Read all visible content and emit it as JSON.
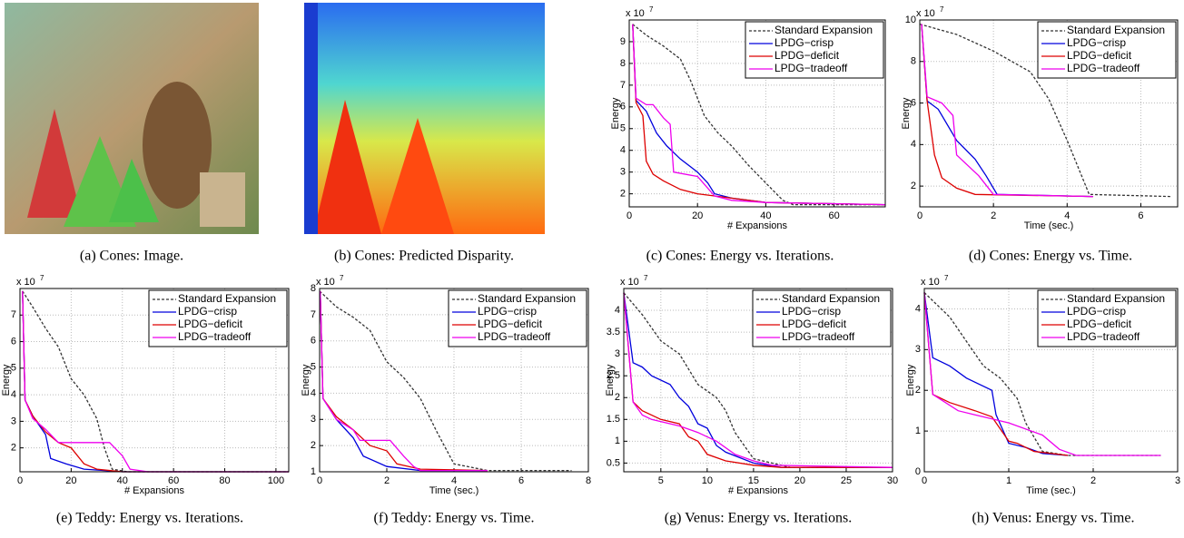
{
  "captions": [
    "(a) Cones: Image.",
    "(b) Cones: Predicted Disparity.",
    "(c) Cones: Energy vs. Iterations.",
    "(d) Cones: Energy vs. Time.",
    "(e) Teddy: Energy vs. Iterations.",
    "(f) Teddy: Energy vs. Time.",
    "(g) Venus: Energy vs. Iterations.",
    "(h) Venus: Energy vs. Time."
  ],
  "chart_data": [
    {
      "type": "line",
      "xlabel": "# Expansions",
      "ylabel": "Energy",
      "y_scale": {
        "base": "x 10",
        "exponent": "7"
      },
      "xlim": [
        0,
        75
      ],
      "xticks": [
        0,
        20,
        40,
        60
      ],
      "ylim": [
        1.4,
        10
      ],
      "yticks": [
        2,
        3,
        4,
        5,
        6,
        7,
        8,
        9
      ],
      "grid": true,
      "legend": "upper-right",
      "series": [
        {
          "name": "Standard Expansion",
          "color": "#333333",
          "dash": true,
          "x": [
            1,
            5,
            10,
            15,
            18,
            22,
            26,
            30,
            35,
            40,
            45,
            48,
            75
          ],
          "values": [
            9.8,
            9.3,
            8.8,
            8.2,
            7.2,
            5.6,
            4.8,
            4.2,
            3.3,
            2.5,
            1.7,
            1.5,
            1.5
          ]
        },
        {
          "name": "LPDG−crisp",
          "color": "#0000dd",
          "x": [
            1,
            2,
            5,
            8,
            11,
            15,
            20,
            23,
            25,
            30,
            40,
            75
          ],
          "values": [
            9.8,
            6.3,
            5.8,
            4.8,
            4.2,
            3.6,
            3.0,
            2.5,
            2.0,
            1.8,
            1.6,
            1.5
          ]
        },
        {
          "name": "LPDG−deficit",
          "color": "#dd0000",
          "x": [
            1,
            2,
            4,
            5,
            7,
            10,
            15,
            20,
            30,
            40,
            75
          ],
          "values": [
            9.8,
            6.2,
            5.6,
            3.5,
            2.9,
            2.6,
            2.2,
            2.0,
            1.8,
            1.6,
            1.5
          ]
        },
        {
          "name": "LPDG−tradeoff",
          "color": "#ee00ee",
          "x": [
            1,
            2,
            5,
            7,
            10,
            12,
            13,
            20,
            25,
            30,
            40,
            75
          ],
          "values": [
            9.8,
            6.4,
            6.1,
            6.1,
            5.5,
            5.2,
            3.0,
            2.8,
            1.9,
            1.7,
            1.6,
            1.5
          ]
        }
      ]
    },
    {
      "type": "line",
      "xlabel": "Time (sec.)",
      "ylabel": "Energy",
      "y_scale": {
        "base": "x 10",
        "exponent": "7"
      },
      "xlim": [
        0,
        7
      ],
      "xticks": [
        0,
        2,
        4,
        6
      ],
      "ylim": [
        1,
        10
      ],
      "yticks": [
        2,
        4,
        6,
        8,
        10
      ],
      "grid": true,
      "legend": "upper-right",
      "series": [
        {
          "name": "Standard Expansion",
          "color": "#333333",
          "dash": true,
          "x": [
            0,
            1,
            2,
            3,
            3.5,
            4,
            4.6,
            6.8
          ],
          "values": [
            9.8,
            9.3,
            8.5,
            7.5,
            6.2,
            4.2,
            1.6,
            1.5
          ]
        },
        {
          "name": "LPDG−crisp",
          "color": "#0000dd",
          "x": [
            0.05,
            0.2,
            0.5,
            1,
            1.5,
            1.8,
            2.1,
            4.7
          ],
          "values": [
            9.8,
            6.1,
            5.7,
            4.2,
            3.3,
            2.5,
            1.6,
            1.5
          ]
        },
        {
          "name": "LPDG−deficit",
          "color": "#dd0000",
          "x": [
            0.05,
            0.2,
            0.4,
            0.6,
            1,
            1.5,
            4.7
          ],
          "values": [
            9.8,
            6.1,
            3.5,
            2.4,
            1.9,
            1.6,
            1.5
          ]
        },
        {
          "name": "LPDG−tradeoff",
          "color": "#ee00ee",
          "x": [
            0.05,
            0.2,
            0.6,
            0.9,
            1.0,
            1.6,
            2,
            4.7
          ],
          "values": [
            9.8,
            6.3,
            6.0,
            5.4,
            3.5,
            2.5,
            1.6,
            1.5
          ]
        }
      ]
    },
    {
      "type": "line",
      "xlabel": "# Expansions",
      "ylabel": "Energy",
      "y_scale": {
        "base": "x 10",
        "exponent": "7"
      },
      "xlim": [
        0,
        105
      ],
      "xticks": [
        0,
        20,
        40,
        60,
        80,
        100
      ],
      "ylim": [
        1.1,
        8
      ],
      "yticks": [
        2,
        3,
        4,
        5,
        6,
        7
      ],
      "grid": true,
      "legend": "upper-right",
      "series": [
        {
          "name": "Standard Expansion",
          "color": "#333333",
          "dash": true,
          "x": [
            1,
            5,
            10,
            15,
            20,
            25,
            30,
            33,
            36,
            42,
            105
          ],
          "values": [
            7.9,
            7.3,
            6.5,
            5.8,
            4.6,
            4,
            3.1,
            2,
            1.2,
            1.1,
            1.1
          ]
        },
        {
          "name": "LPDG−crisp",
          "color": "#0000dd",
          "x": [
            1,
            2,
            5,
            10,
            12,
            18,
            25,
            40,
            105
          ],
          "values": [
            7.9,
            3.8,
            3.2,
            2.5,
            1.6,
            1.4,
            1.2,
            1.1,
            1.1
          ]
        },
        {
          "name": "LPDG−deficit",
          "color": "#dd0000",
          "x": [
            1,
            2,
            5,
            10,
            15,
            20,
            25,
            30,
            40,
            105
          ],
          "values": [
            7.9,
            3.8,
            3.2,
            2.6,
            2.2,
            2.0,
            1.4,
            1.2,
            1.1,
            1.1
          ]
        },
        {
          "name": "LPDG−tradeoff",
          "color": "#ee00ee",
          "x": [
            1,
            2,
            5,
            10,
            15,
            35,
            40,
            43,
            50,
            105
          ],
          "values": [
            7.9,
            3.8,
            3.1,
            2.7,
            2.2,
            2.2,
            1.7,
            1.2,
            1.1,
            1.1
          ]
        }
      ]
    },
    {
      "type": "line",
      "xlabel": "Time (sec.)",
      "ylabel": "Energy",
      "y_scale": {
        "base": "x 10",
        "exponent": "7"
      },
      "xlim": [
        0,
        8
      ],
      "xticks": [
        0,
        2,
        4,
        6,
        8
      ],
      "ylim": [
        1,
        8
      ],
      "yticks": [
        1,
        2,
        3,
        4,
        5,
        6,
        7,
        8
      ],
      "grid": true,
      "legend": "upper-right",
      "series": [
        {
          "name": "Standard Expansion",
          "color": "#333333",
          "dash": true,
          "x": [
            0,
            0.5,
            1,
            1.5,
            2,
            2.5,
            3,
            3.5,
            4,
            5,
            7.5
          ],
          "values": [
            7.9,
            7.3,
            6.9,
            6.4,
            5.2,
            4.6,
            3.8,
            2.5,
            1.3,
            1.05,
            1.05
          ]
        },
        {
          "name": "LPDG−crisp",
          "color": "#0000dd",
          "x": [
            0.02,
            0.1,
            0.5,
            1,
            1.3,
            2,
            3,
            5
          ],
          "values": [
            7.9,
            3.8,
            3.0,
            2.3,
            1.6,
            1.2,
            1.05,
            1.05
          ]
        },
        {
          "name": "LPDG−deficit",
          "color": "#dd0000",
          "x": [
            0.02,
            0.1,
            0.5,
            1,
            1.5,
            2,
            2.3,
            3,
            5
          ],
          "values": [
            7.9,
            3.8,
            3.1,
            2.6,
            2.0,
            1.8,
            1.3,
            1.1,
            1.05
          ]
        },
        {
          "name": "LPDG−tradeoff",
          "color": "#ee00ee",
          "x": [
            0.02,
            0.1,
            0.5,
            1,
            1.2,
            2.1,
            2.5,
            2.8,
            3,
            5
          ],
          "values": [
            7.9,
            3.8,
            3.0,
            2.6,
            2.2,
            2.2,
            1.6,
            1.2,
            1.05,
            1.05
          ]
        }
      ]
    },
    {
      "type": "line",
      "xlabel": "# Expansions",
      "ylabel": "Energy",
      "y_scale": {
        "base": "x 10",
        "exponent": "7"
      },
      "xlim": [
        1,
        30
      ],
      "xticks": [
        5,
        10,
        15,
        20,
        25,
        30
      ],
      "ylim": [
        0.3,
        4.5
      ],
      "yticks": [
        0.5,
        1,
        1.5,
        2,
        2.5,
        3,
        3.5,
        4
      ],
      "grid": true,
      "legend": "upper-right",
      "series": [
        {
          "name": "Standard Expansion",
          "color": "#333333",
          "dash": true,
          "x": [
            1,
            3,
            5,
            7,
            9,
            11,
            12,
            13,
            15,
            19,
            30
          ],
          "values": [
            4.4,
            3.9,
            3.3,
            3.0,
            2.3,
            2.0,
            1.7,
            1.2,
            0.6,
            0.4,
            0.4
          ]
        },
        {
          "name": "LPDG−crisp",
          "color": "#0000dd",
          "x": [
            1,
            2,
            3,
            4,
            6,
            7,
            8,
            9,
            10,
            11,
            12,
            15,
            18,
            30
          ],
          "values": [
            4.4,
            2.8,
            2.7,
            2.5,
            2.3,
            2.0,
            1.8,
            1.4,
            1.3,
            0.9,
            0.75,
            0.5,
            0.4,
            0.4
          ]
        },
        {
          "name": "LPDG−deficit",
          "color": "#dd0000",
          "x": [
            1,
            2,
            3,
            5,
            7,
            8,
            9,
            10,
            12,
            15,
            18,
            30
          ],
          "values": [
            4.4,
            1.9,
            1.7,
            1.5,
            1.4,
            1.1,
            1.0,
            0.7,
            0.55,
            0.45,
            0.4,
            0.4
          ]
        },
        {
          "name": "LPDG−tradeoff",
          "color": "#ee00ee",
          "x": [
            1,
            2,
            3,
            4,
            7,
            9,
            11,
            13,
            15,
            17,
            30
          ],
          "values": [
            4.4,
            1.9,
            1.6,
            1.5,
            1.35,
            1.2,
            1.0,
            0.7,
            0.55,
            0.45,
            0.4
          ]
        }
      ]
    },
    {
      "type": "line",
      "xlabel": "Time (sec.)",
      "ylabel": "Energy",
      "y_scale": {
        "base": "x 10",
        "exponent": "7"
      },
      "xlim": [
        0,
        3
      ],
      "xticks": [
        0,
        1,
        2,
        3
      ],
      "ylim": [
        0,
        4.5
      ],
      "yticks": [
        0,
        1,
        2,
        3,
        4
      ],
      "grid": true,
      "legend": "upper-right",
      "series": [
        {
          "name": "Standard Expansion",
          "color": "#333333",
          "dash": true,
          "x": [
            0,
            0.3,
            0.5,
            0.7,
            0.9,
            1.1,
            1.2,
            1.4,
            1.7,
            2.8
          ],
          "values": [
            4.4,
            3.8,
            3.2,
            2.6,
            2.3,
            1.8,
            1.2,
            0.5,
            0.4,
            0.4
          ]
        },
        {
          "name": "LPDG−crisp",
          "color": "#0000dd",
          "x": [
            0,
            0.1,
            0.3,
            0.5,
            0.8,
            0.85,
            1,
            1.2,
            1.4,
            1.7
          ],
          "values": [
            4.4,
            2.8,
            2.6,
            2.3,
            2.0,
            1.4,
            0.7,
            0.6,
            0.45,
            0.4
          ]
        },
        {
          "name": "LPDG−deficit",
          "color": "#dd0000",
          "x": [
            0,
            0.1,
            0.3,
            0.6,
            0.8,
            1,
            1.1,
            1.3,
            1.7
          ],
          "values": [
            4.4,
            1.9,
            1.7,
            1.5,
            1.35,
            0.75,
            0.7,
            0.5,
            0.4
          ]
        },
        {
          "name": "LPDG−tradeoff",
          "color": "#ee00ee",
          "x": [
            0,
            0.1,
            0.4,
            0.6,
            1,
            1.4,
            1.6,
            1.8,
            2.8
          ],
          "values": [
            4.4,
            1.9,
            1.5,
            1.4,
            1.2,
            0.9,
            0.55,
            0.4,
            0.4
          ]
        }
      ]
    }
  ]
}
